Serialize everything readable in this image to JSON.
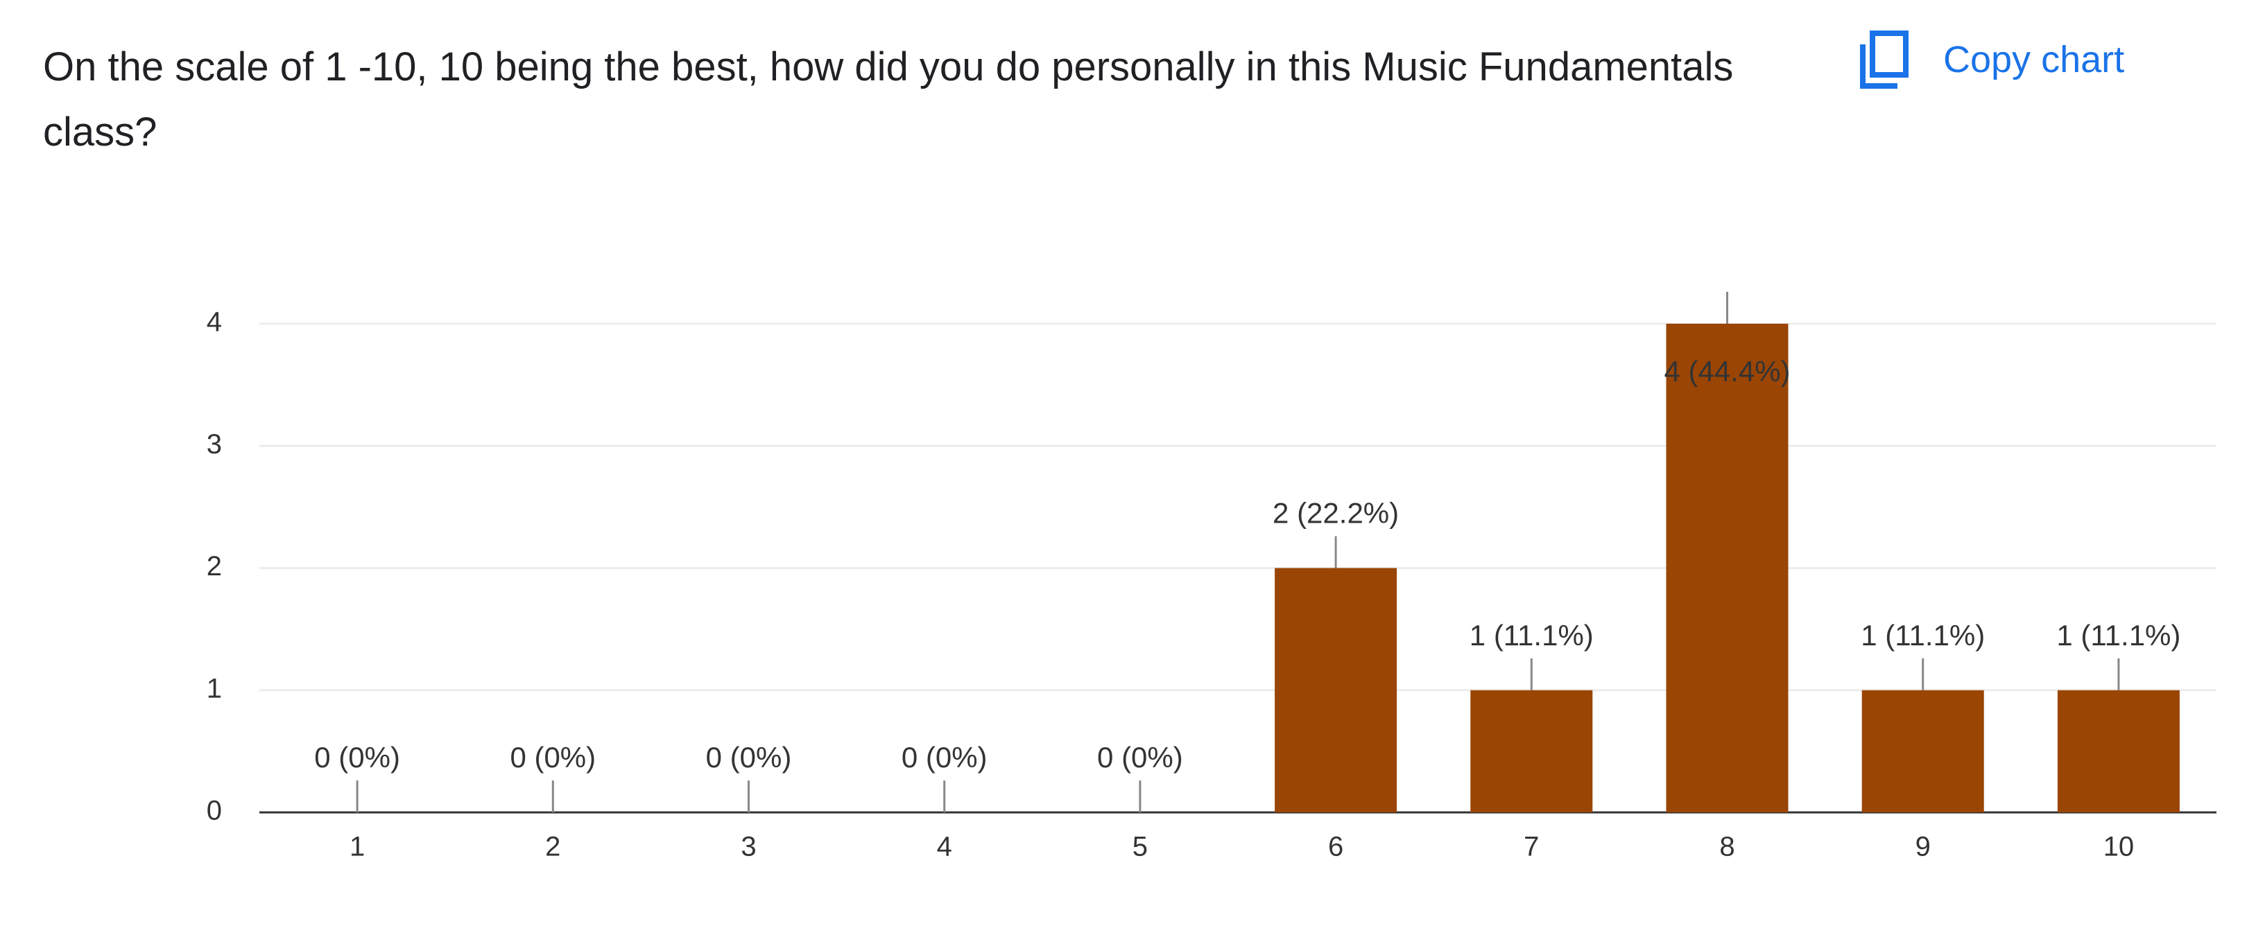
{
  "title": "On the scale of 1 -10, 10 being the best, how did you do personally in this Music Fundamentals class?",
  "copy_button": "Copy chart",
  "chart_data": {
    "type": "bar",
    "categories": [
      "1",
      "2",
      "3",
      "4",
      "5",
      "6",
      "7",
      "8",
      "9",
      "10"
    ],
    "values": [
      0,
      0,
      0,
      0,
      0,
      2,
      1,
      4,
      1,
      1
    ],
    "value_labels": [
      "0 (0%)",
      "0 (0%)",
      "0 (0%)",
      "0 (0%)",
      "0 (0%)",
      "2 (22.2%)",
      "1 (11.1%)",
      "4 (44.4%)",
      "1 (11.1%)",
      "1 (11.1%)"
    ],
    "color": "#9a4504",
    "ylim": [
      0,
      4
    ],
    "yticks": [
      0,
      1,
      2,
      3,
      4
    ],
    "grid": true
  }
}
